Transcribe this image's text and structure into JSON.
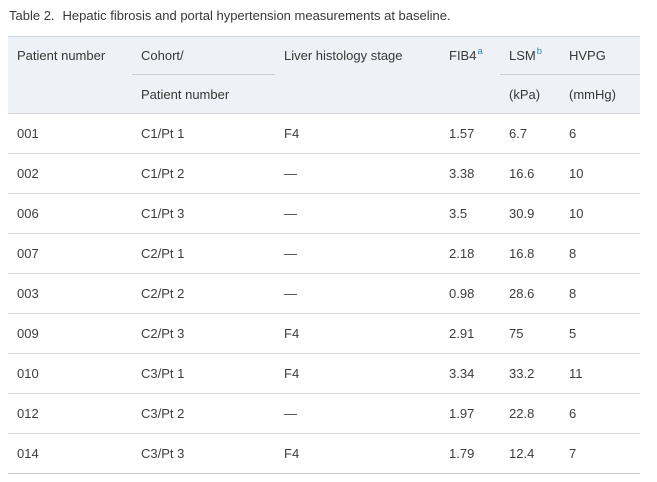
{
  "caption": {
    "label": "Table 2.",
    "text": "Hepatic fibrosis and portal hypertension measurements at baseline."
  },
  "table": {
    "columns": [
      {
        "id": "patient-number",
        "line1": "Patient number",
        "line2": ""
      },
      {
        "id": "cohort-patient-number",
        "line1": "Cohort/",
        "line2": "Patient number"
      },
      {
        "id": "liver-histology-stage",
        "line1": "Liver histology stage",
        "line2": ""
      },
      {
        "id": "fib4",
        "line1": "FIB4",
        "footnote": "a",
        "line2": ""
      },
      {
        "id": "lsm",
        "line1": "LSM",
        "footnote": "b",
        "line2": "(kPa)"
      },
      {
        "id": "hvpg",
        "line1": "HVPG",
        "line2": "(mmHg)"
      }
    ],
    "rows": [
      [
        "001",
        "C1/Pt 1",
        "F4",
        "1.57",
        "6.7",
        "6"
      ],
      [
        "002",
        "C1/Pt 2",
        "—",
        "3.38",
        "16.6",
        "10"
      ],
      [
        "006",
        "C1/Pt 3",
        "—",
        "3.5",
        "30.9",
        "10"
      ],
      [
        "007",
        "C2/Pt 1",
        "—",
        "2.18",
        "16.8",
        "8"
      ],
      [
        "003",
        "C2/Pt 2",
        "—",
        "0.98",
        "28.6",
        "8"
      ],
      [
        "009",
        "C2/Pt 3",
        "F4",
        "2.91",
        "75",
        "5"
      ],
      [
        "010",
        "C3/Pt 1",
        "F4",
        "3.34",
        "33.2",
        "11"
      ],
      [
        "012",
        "C3/Pt 2",
        "—",
        "1.97",
        "22.8",
        "6"
      ],
      [
        "014",
        "C3/Pt 3",
        "F4",
        "1.79",
        "12.4",
        "7"
      ]
    ]
  },
  "colors": {
    "footnote_blue": "#2d87c1",
    "header_bg": "#eef1f6"
  }
}
